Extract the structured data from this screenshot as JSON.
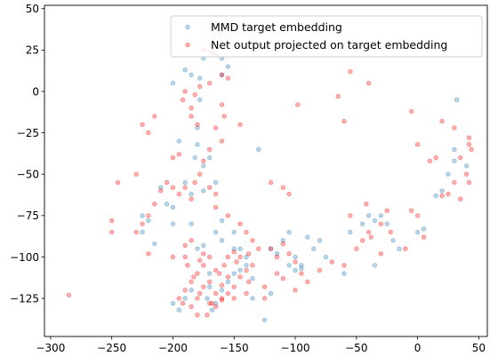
{
  "chart_data": {
    "type": "scatter",
    "xlim": [
      -305,
      57
    ],
    "ylim": [
      -148,
      52
    ],
    "xticks": [
      -300,
      -250,
      -200,
      -150,
      -100,
      -50,
      0,
      50
    ],
    "yticks": [
      50,
      25,
      0,
      -25,
      -50,
      -75,
      -100,
      -125
    ],
    "xtick_labels": [
      "−300",
      "−250",
      "−200",
      "−150",
      "−100",
      "−50",
      "0",
      "50"
    ],
    "ytick_labels": [
      "50",
      "25",
      "0",
      "−25",
      "−50",
      "−75",
      "−100",
      "−125"
    ],
    "legend_position": "top-right",
    "grid": false,
    "series": [
      {
        "name": "MMD target embedding",
        "color": "#1f77b4",
        "points": [
          [
            -168,
            42
          ],
          [
            -165,
            40
          ],
          [
            -162,
            36
          ],
          [
            -160,
            20
          ],
          [
            -155,
            15
          ],
          [
            -160,
            10
          ],
          [
            -175,
            20
          ],
          [
            -178,
            8
          ],
          [
            -185,
            10
          ],
          [
            -190,
            13
          ],
          [
            -200,
            5
          ],
          [
            -178,
            -5
          ],
          [
            -180,
            -22
          ],
          [
            -182,
            -40
          ],
          [
            -175,
            -45
          ],
          [
            -170,
            -40
          ],
          [
            -175,
            -60
          ],
          [
            -185,
            -62
          ],
          [
            -190,
            -55
          ],
          [
            -185,
            -80
          ],
          [
            -200,
            -70
          ],
          [
            -205,
            -68
          ],
          [
            -210,
            -58
          ],
          [
            -220,
            -78
          ],
          [
            -225,
            -75
          ],
          [
            -225,
            -85
          ],
          [
            -215,
            -92
          ],
          [
            -200,
            -80
          ],
          [
            -195,
            -30
          ],
          [
            -180,
            -32
          ],
          [
            -165,
            -55
          ],
          [
            -160,
            -78
          ],
          [
            -150,
            -85
          ],
          [
            -145,
            -95
          ],
          [
            -140,
            -100
          ],
          [
            -130,
            -35
          ],
          [
            -120,
            -95
          ],
          [
            -115,
            -98
          ],
          [
            -110,
            -90
          ],
          [
            -105,
            -85
          ],
          [
            -100,
            -100
          ],
          [
            -95,
            -105
          ],
          [
            -90,
            -88
          ],
          [
            -85,
            -95
          ],
          [
            -80,
            -90
          ],
          [
            -75,
            -100
          ],
          [
            -60,
            -110
          ],
          [
            -55,
            -85
          ],
          [
            -45,
            -80
          ],
          [
            -40,
            -75
          ],
          [
            -35,
            -78
          ],
          [
            -30,
            -75
          ],
          [
            -25,
            -80
          ],
          [
            -20,
            -90
          ],
          [
            -35,
            -105
          ],
          [
            -15,
            -95
          ],
          [
            0,
            -85
          ],
          [
            5,
            -83
          ],
          [
            15,
            -63
          ],
          [
            20,
            -60
          ],
          [
            25,
            -50
          ],
          [
            30,
            -35
          ],
          [
            30,
            -42
          ],
          [
            40,
            -45
          ],
          [
            32,
            -5
          ],
          [
            -185,
            -120
          ],
          [
            -190,
            -125
          ],
          [
            -170,
            -118
          ],
          [
            -165,
            -128
          ],
          [
            -160,
            -120
          ],
          [
            -155,
            -115
          ],
          [
            -150,
            -110
          ],
          [
            -145,
            -108
          ],
          [
            -140,
            -105
          ],
          [
            -135,
            -113
          ],
          [
            -125,
            -138
          ],
          [
            -120,
            -122
          ],
          [
            -100,
            -108
          ],
          [
            -95,
            -107
          ],
          [
            -180,
            -95
          ],
          [
            -175,
            -93
          ],
          [
            -165,
            -85
          ],
          [
            -160,
            -90
          ],
          [
            -170,
            -110
          ],
          [
            -200,
            -128
          ],
          [
            -195,
            -132
          ],
          [
            -172,
            -125
          ],
          [
            -168,
            -132
          ],
          [
            -150,
            -95
          ],
          [
            -135,
            -125
          ],
          [
            -105,
            -105
          ]
        ]
      },
      {
        "name": "Net output projected on target embedding",
        "color": "#ff0000",
        "points": [
          [
            -175,
            25
          ],
          [
            -168,
            24
          ],
          [
            -165,
            22
          ],
          [
            -160,
            10
          ],
          [
            -155,
            8
          ],
          [
            -170,
            5
          ],
          [
            -178,
            3
          ],
          [
            -182,
            -2
          ],
          [
            -190,
            0
          ],
          [
            -192,
            -5
          ],
          [
            -185,
            -10
          ],
          [
            -185,
            -15
          ],
          [
            -180,
            -20
          ],
          [
            -160,
            -8
          ],
          [
            -158,
            -15
          ],
          [
            -145,
            -20
          ],
          [
            -165,
            -22
          ],
          [
            -160,
            -30
          ],
          [
            -170,
            -35
          ],
          [
            -175,
            -42
          ],
          [
            -178,
            -50
          ],
          [
            -170,
            -58
          ],
          [
            -165,
            -62
          ],
          [
            -182,
            -55
          ],
          [
            -190,
            -58
          ],
          [
            -200,
            -58
          ],
          [
            -205,
            -55
          ],
          [
            -210,
            -60
          ],
          [
            -215,
            -68
          ],
          [
            -220,
            -75
          ],
          [
            -225,
            -80
          ],
          [
            -220,
            -98
          ],
          [
            -230,
            -85
          ],
          [
            -245,
            -55
          ],
          [
            -230,
            -50
          ],
          [
            -250,
            -78
          ],
          [
            -250,
            -85
          ],
          [
            -195,
            -38
          ],
          [
            -200,
            -40
          ],
          [
            -225,
            -20
          ],
          [
            -220,
            -25
          ],
          [
            -215,
            -15
          ],
          [
            -195,
            -62
          ],
          [
            -185,
            -65
          ],
          [
            -165,
            -70
          ],
          [
            -155,
            -75
          ],
          [
            -145,
            -80
          ],
          [
            -140,
            -85
          ],
          [
            -135,
            -90
          ],
          [
            -170,
            -100
          ],
          [
            -175,
            -105
          ],
          [
            -180,
            -110
          ],
          [
            -185,
            -115
          ],
          [
            -190,
            -120
          ],
          [
            -192,
            -128
          ],
          [
            -185,
            -130
          ],
          [
            -180,
            -125
          ],
          [
            -175,
            -118
          ],
          [
            -170,
            -115
          ],
          [
            -165,
            -122
          ],
          [
            -162,
            -110
          ],
          [
            -158,
            -105
          ],
          [
            -155,
            -100
          ],
          [
            -150,
            -97
          ],
          [
            -145,
            -100
          ],
          [
            -140,
            -108
          ],
          [
            -138,
            -115
          ],
          [
            -150,
            -118
          ],
          [
            -155,
            -122
          ],
          [
            -160,
            -126
          ],
          [
            -165,
            -130
          ],
          [
            -170,
            -128
          ],
          [
            -178,
            -122
          ],
          [
            -183,
            -112
          ],
          [
            -188,
            -105
          ],
          [
            -190,
            -100
          ],
          [
            -120,
            -95
          ],
          [
            -115,
            -100
          ],
          [
            -110,
            -92
          ],
          [
            -105,
            -98
          ],
          [
            -100,
            -103
          ],
          [
            -110,
            -58
          ],
          [
            -120,
            -55
          ],
          [
            -105,
            -62
          ],
          [
            -95,
            -110
          ],
          [
            -90,
            -115
          ],
          [
            -80,
            -108
          ],
          [
            -70,
            -103
          ],
          [
            -60,
            -105
          ],
          [
            -50,
            -95
          ],
          [
            -45,
            -90
          ],
          [
            -40,
            -85
          ],
          [
            -55,
            -75
          ],
          [
            -65,
            -3
          ],
          [
            -60,
            -18
          ],
          [
            -55,
            12
          ],
          [
            -40,
            5
          ],
          [
            -98,
            -8
          ],
          [
            -42,
            -68
          ],
          [
            -38,
            -88
          ],
          [
            -30,
            -80
          ],
          [
            -25,
            -72
          ],
          [
            -22,
            -85
          ],
          [
            -30,
            -98
          ],
          [
            -10,
            -95
          ],
          [
            -5,
            -72
          ],
          [
            0,
            -75
          ],
          [
            5,
            -88
          ],
          [
            -5,
            -12
          ],
          [
            0,
            -32
          ],
          [
            10,
            -42
          ],
          [
            20,
            -63
          ],
          [
            25,
            -62
          ],
          [
            30,
            -55
          ],
          [
            35,
            -40
          ],
          [
            40,
            -50
          ],
          [
            42,
            -55
          ],
          [
            42,
            -32
          ],
          [
            44,
            -35
          ],
          [
            42,
            -28
          ],
          [
            30,
            -22
          ],
          [
            20,
            -18
          ],
          [
            15,
            -40
          ],
          [
            35,
            -65
          ],
          [
            -285,
            -123
          ],
          [
            -125,
            -118
          ],
          [
            -110,
            -113
          ],
          [
            -100,
            -120
          ],
          [
            -115,
            -110
          ],
          [
            -135,
            -105
          ],
          [
            -145,
            -112
          ],
          [
            -130,
            -95
          ],
          [
            -200,
            -100
          ],
          [
            -190,
            -93
          ],
          [
            -178,
            -102
          ],
          [
            -168,
            -128
          ],
          [
            -172,
            -135
          ],
          [
            -160,
            -125
          ],
          [
            -180,
            -135
          ],
          [
            -195,
            -125
          ],
          [
            -150,
            -125
          ],
          [
            -140,
            -122
          ],
          [
            -125,
            -125
          ],
          [
            -165,
            -108
          ],
          [
            -175,
            -98
          ],
          [
            -185,
            -90
          ],
          [
            -160,
            -117
          ],
          [
            -155,
            -112
          ],
          [
            -148,
            -103
          ],
          [
            -138,
            -98
          ]
        ]
      }
    ]
  }
}
